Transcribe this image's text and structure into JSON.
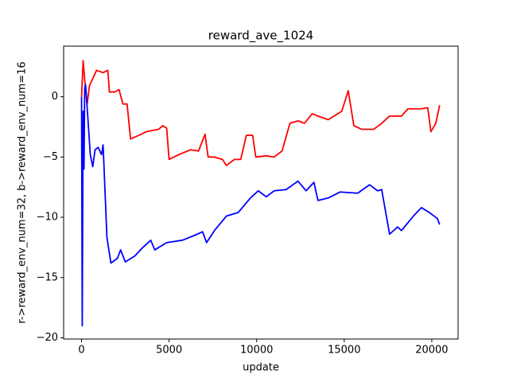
{
  "chart_data": {
    "type": "line",
    "title": "reward_ave_1024",
    "xlabel": "update",
    "ylabel": "r->reward_env_num=32, b->reward_env_num=16",
    "xlim": [
      -1024,
      21504
    ],
    "ylim": [
      -20.1,
      4.2
    ],
    "xticks": [
      0,
      5000,
      10000,
      15000,
      20000
    ],
    "yticks": [
      0,
      {
        "value": -5,
        "label": "−5"
      },
      {
        "value": -10,
        "label": "−10"
      },
      {
        "value": -15,
        "label": "−15"
      },
      {
        "value": -20,
        "label": "−20"
      }
    ],
    "series": [
      {
        "color": "#ff0000",
        "x": [
          0,
          90,
          180,
          320,
          450,
          700,
          860,
          1230,
          1500,
          1590,
          1900,
          2140,
          2360,
          2600,
          2800,
          3270,
          3700,
          4400,
          4640,
          4860,
          5000,
          5550,
          6230,
          6680,
          7050,
          7230,
          7590,
          8050,
          8270,
          8730,
          9090,
          9410,
          9770,
          9950,
          10550,
          11000,
          11450,
          11900,
          12360,
          12730,
          13180,
          13500,
          14090,
          14860,
          15230,
          15550,
          16000,
          16680,
          17140,
          17590,
          18270,
          18640,
          19410,
          19770,
          19950,
          20230,
          20450
        ],
        "values": [
          0,
          3.0,
          1.4,
          -0.6,
          0.9,
          1.7,
          2.2,
          2.0,
          2.2,
          0.4,
          0.4,
          0.6,
          -0.6,
          -0.6,
          -3.5,
          -3.2,
          -2.9,
          -2.7,
          -2.4,
          -2.6,
          -5.2,
          -4.8,
          -4.4,
          -4.5,
          -3.1,
          -5.0,
          -5.0,
          -5.2,
          -5.7,
          -5.2,
          -5.2,
          -3.2,
          -3.2,
          -5.0,
          -4.9,
          -5.0,
          -4.5,
          -2.2,
          -2.0,
          -2.2,
          -1.4,
          -1.6,
          -1.9,
          -1.2,
          0.5,
          -2.4,
          -2.7,
          -2.7,
          -2.2,
          -1.6,
          -1.6,
          -1.0,
          -1.0,
          -0.9,
          -2.9,
          -2.2,
          -0.7
        ]
      },
      {
        "color": "#0000ff",
        "x": [
          0,
          40,
          90,
          140,
          180,
          230,
          320,
          500,
          640,
          770,
          950,
          1140,
          1230,
          1450,
          1680,
          2050,
          2230,
          2500,
          3050,
          3500,
          3950,
          4180,
          4860,
          5770,
          6450,
          6910,
          7140,
          7590,
          8270,
          8950,
          9640,
          10090,
          10550,
          11000,
          11680,
          12360,
          12820,
          13270,
          13500,
          14090,
          14770,
          15770,
          16450,
          16910,
          17140,
          17590,
          18050,
          18270,
          18950,
          19410,
          19860,
          20320,
          20450
        ],
        "values": [
          0,
          -19.0,
          -1.2,
          -6.0,
          0.7,
          1.0,
          -0.9,
          -4.8,
          -5.8,
          -4.4,
          -4.2,
          -4.8,
          -4.0,
          -11.7,
          -13.8,
          -13.4,
          -12.7,
          -13.7,
          -13.2,
          -12.5,
          -11.9,
          -12.7,
          -12.1,
          -11.9,
          -11.5,
          -11.2,
          -12.1,
          -11.1,
          -9.9,
          -9.6,
          -8.4,
          -7.8,
          -8.3,
          -7.8,
          -7.7,
          -7.0,
          -7.8,
          -7.1,
          -8.6,
          -8.4,
          -7.9,
          -8.0,
          -7.3,
          -7.8,
          -7.7,
          -11.4,
          -10.8,
          -11.1,
          -9.9,
          -9.2,
          -9.6,
          -10.1,
          -10.6
        ]
      }
    ]
  }
}
